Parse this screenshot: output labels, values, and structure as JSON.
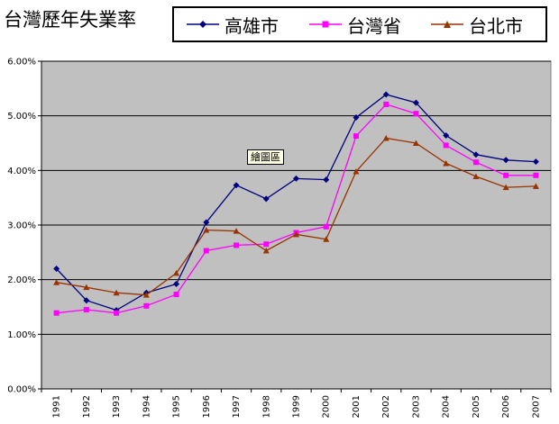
{
  "chart_data": {
    "type": "line",
    "title": "台灣歷年失業率",
    "tooltip": "繪圖區",
    "categories": [
      "1991",
      "1992",
      "1993",
      "1994",
      "1995",
      "1996",
      "1997",
      "1998",
      "1999",
      "2000",
      "2001",
      "2002",
      "2003",
      "2004",
      "2005",
      "2006",
      "2007"
    ],
    "y_tick_labels": [
      "0.00%",
      "1.00%",
      "2.00%",
      "3.00%",
      "4.00%",
      "5.00%",
      "6.00%"
    ],
    "ylim": [
      0,
      6
    ],
    "grid": true,
    "legend_position": "top",
    "series": [
      {
        "name": "高雄市",
        "color": "#000080",
        "marker": "diamond",
        "values": [
          2.2,
          1.62,
          1.44,
          1.76,
          1.92,
          3.05,
          3.73,
          3.48,
          3.85,
          3.83,
          4.97,
          5.39,
          5.24,
          4.64,
          4.29,
          4.19,
          4.16
        ]
      },
      {
        "name": "台灣省",
        "color": "#ff00ff",
        "marker": "square",
        "values": [
          1.39,
          1.45,
          1.39,
          1.52,
          1.73,
          2.53,
          2.63,
          2.65,
          2.86,
          2.97,
          4.63,
          5.21,
          5.04,
          4.46,
          4.15,
          3.91,
          3.91
        ]
      },
      {
        "name": "台北市",
        "color": "#993300",
        "marker": "triangle",
        "values": [
          1.95,
          1.86,
          1.76,
          1.72,
          2.12,
          2.91,
          2.89,
          2.53,
          2.83,
          2.74,
          3.98,
          4.59,
          4.5,
          4.13,
          3.89,
          3.69,
          3.71
        ]
      }
    ]
  }
}
